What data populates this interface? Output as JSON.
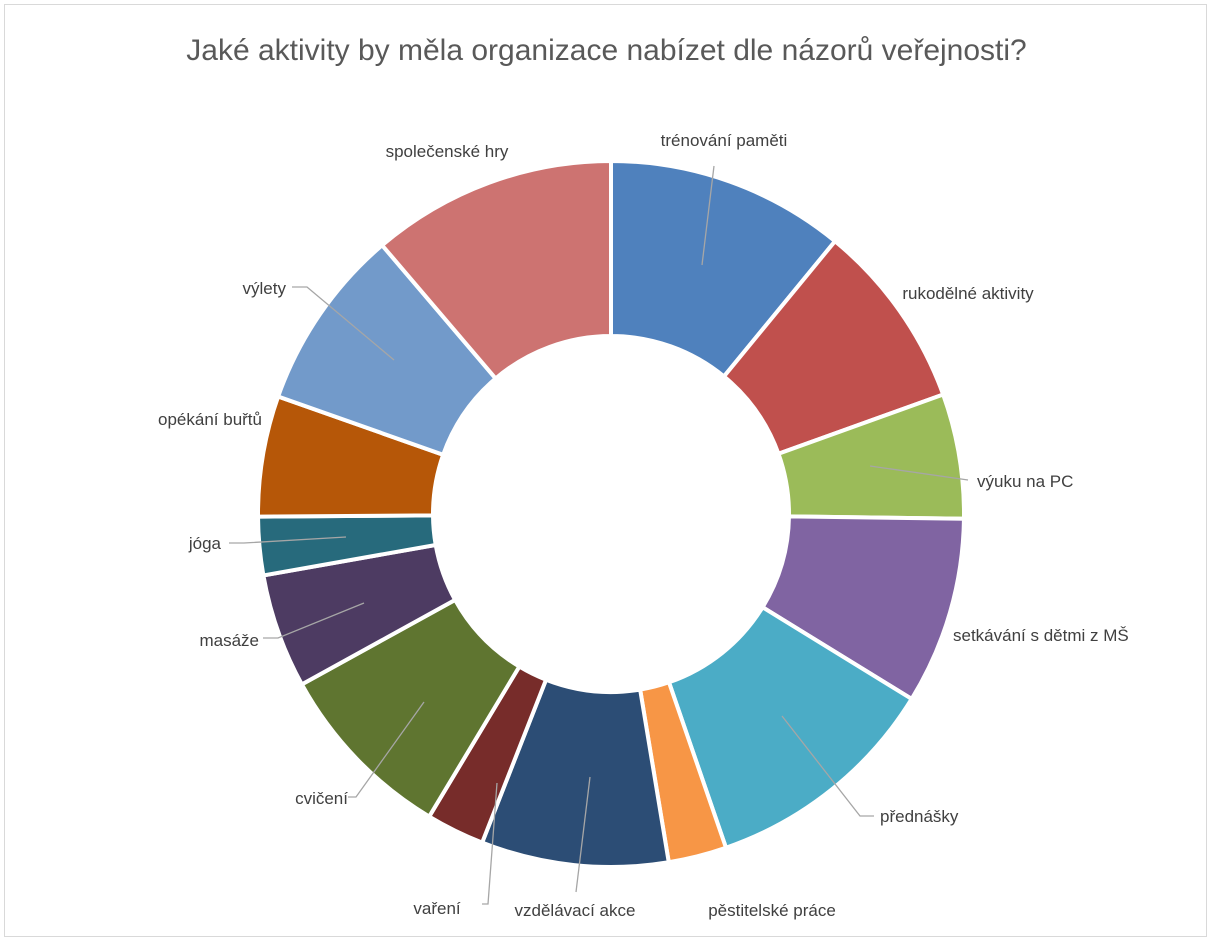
{
  "chart_data": {
    "type": "pie",
    "subtype": "doughnut",
    "title": "Jaké aktivity by měla organizace nabízet dle názorů veřejnosti?",
    "legend": "none",
    "categories": [
      "trénování paměti",
      "rukodělné aktivity",
      "výuku na PC",
      "setkávání s dětmi z MŠ",
      "přednášky",
      "pěstitelské práce",
      "vzdělávací akce",
      "vaření",
      "cvičení",
      "masáže",
      "jóga",
      "opékání buřtů",
      "výlety",
      "společenské hry"
    ],
    "values": [
      11.5,
      9.0,
      6.0,
      9.0,
      11.5,
      2.8,
      9.0,
      2.8,
      8.8,
      5.5,
      2.8,
      5.8,
      8.8,
      11.8
    ],
    "colors": [
      "#4f81bd",
      "#c0504d",
      "#9bbb59",
      "#8064a2",
      "#4bacc6",
      "#f79646",
      "#2c4d75",
      "#772c2a",
      "#5f7530",
      "#4d3b62",
      "#276a7c",
      "#b65708",
      "#729aca",
      "#cd7371"
    ]
  }
}
